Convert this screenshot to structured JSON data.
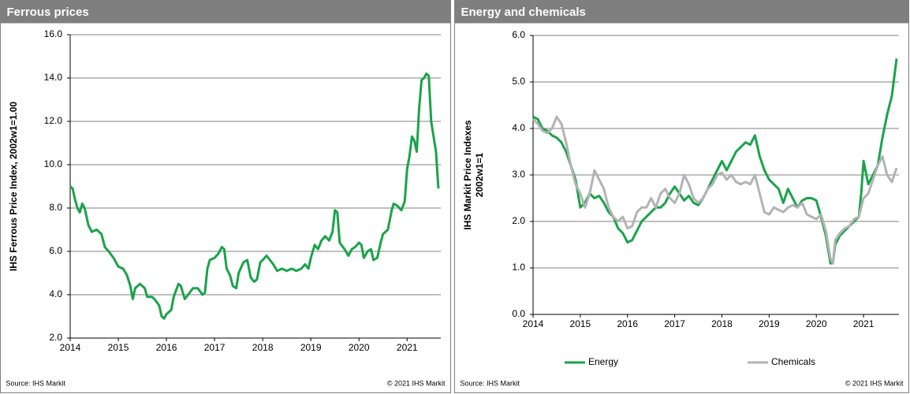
{
  "chart_data": [
    {
      "type": "line",
      "title": "Ferrous prices",
      "ylabel": [
        "IHS Ferrous Price Index, 2002w1=1.00"
      ],
      "source": "Source: IHS Markit",
      "credit": "© 2021 IHS Markit",
      "color": "#1aa34a",
      "grid": true,
      "xlim": [
        2014,
        2021.7
      ],
      "xticks": [
        2014,
        2015,
        2016,
        2017,
        2018,
        2019,
        2020,
        2021
      ],
      "ylim": [
        2,
        16
      ],
      "yticks": [
        {
          "value": 2,
          "label": "2.0"
        },
        {
          "value": 4,
          "label": "4.0"
        },
        {
          "value": 6,
          "label": "6.0"
        },
        {
          "value": 8,
          "label": "8.0"
        },
        {
          "value": 10,
          "label": "10.0"
        },
        {
          "value": 12,
          "label": "12.0"
        },
        {
          "value": 14,
          "label": "14.0"
        },
        {
          "value": 16,
          "label": "16.0"
        }
      ],
      "x": [
        2014.0,
        2014.05,
        2014.1,
        2014.15,
        2014.2,
        2014.25,
        2014.3,
        2014.38,
        2014.45,
        2014.55,
        2014.65,
        2014.72,
        2014.8,
        2014.9,
        2015.0,
        2015.1,
        2015.18,
        2015.25,
        2015.3,
        2015.35,
        2015.45,
        2015.55,
        2015.6,
        2015.7,
        2015.75,
        2015.85,
        2015.9,
        2015.95,
        2016.0,
        2016.1,
        2016.15,
        2016.25,
        2016.3,
        2016.38,
        2016.45,
        2016.55,
        2016.65,
        2016.75,
        2016.8,
        2016.85,
        2016.9,
        2017.0,
        2017.08,
        2017.15,
        2017.2,
        2017.25,
        2017.32,
        2017.38,
        2017.45,
        2017.5,
        2017.6,
        2017.68,
        2017.75,
        2017.82,
        2017.88,
        2017.95,
        2018.0,
        2018.08,
        2018.15,
        2018.22,
        2018.3,
        2018.4,
        2018.5,
        2018.6,
        2018.7,
        2018.8,
        2018.88,
        2018.95,
        2019.0,
        2019.08,
        2019.15,
        2019.22,
        2019.3,
        2019.38,
        2019.45,
        2019.5,
        2019.55,
        2019.6,
        2019.7,
        2019.78,
        2019.85,
        2019.92,
        2020.0,
        2020.05,
        2020.1,
        2020.18,
        2020.25,
        2020.3,
        2020.38,
        2020.45,
        2020.5,
        2020.6,
        2020.68,
        2020.72,
        2020.8,
        2020.88,
        2020.95,
        2021.0,
        2021.05,
        2021.1,
        2021.15,
        2021.2,
        2021.25,
        2021.3,
        2021.35,
        2021.4,
        2021.45,
        2021.5,
        2021.55,
        2021.6,
        2021.65
      ],
      "values": [
        9.0,
        8.9,
        8.4,
        8.0,
        7.8,
        8.2,
        8.0,
        7.2,
        6.9,
        7.0,
        6.8,
        6.2,
        6.0,
        5.7,
        5.3,
        5.2,
        4.9,
        4.4,
        3.8,
        4.3,
        4.5,
        4.3,
        3.9,
        3.9,
        3.8,
        3.5,
        3.0,
        2.9,
        3.1,
        3.3,
        3.9,
        4.5,
        4.4,
        3.8,
        4.0,
        4.3,
        4.3,
        4.0,
        4.1,
        5.2,
        5.6,
        5.7,
        5.9,
        6.2,
        6.1,
        5.2,
        4.9,
        4.4,
        4.3,
        5.0,
        5.5,
        5.6,
        4.8,
        4.6,
        4.7,
        5.5,
        5.6,
        5.8,
        5.6,
        5.4,
        5.1,
        5.2,
        5.1,
        5.2,
        5.1,
        5.2,
        5.4,
        5.2,
        5.7,
        6.3,
        6.1,
        6.5,
        6.7,
        6.5,
        6.9,
        7.9,
        7.8,
        6.4,
        6.1,
        5.8,
        6.1,
        6.2,
        6.4,
        6.3,
        5.7,
        6.0,
        6.1,
        5.6,
        5.7,
        6.4,
        6.8,
        7.0,
        7.9,
        8.2,
        8.1,
        7.9,
        8.3,
        9.8,
        10.4,
        11.3,
        11.1,
        10.6,
        12.6,
        13.9,
        14.0,
        14.2,
        14.1,
        12.0,
        11.3,
        10.6,
        8.9
      ]
    },
    {
      "type": "line",
      "title": "Energy and chemicals",
      "ylabel": [
        "IHS Markit Price Indexes",
        "2002w1=1"
      ],
      "source": "Source: IHS Markit",
      "credit": "© 2021 IHS Markit",
      "grid": true,
      "legend": "bottom",
      "xlim": [
        2014,
        2021.75
      ],
      "xticks": [
        2014,
        2015,
        2016,
        2017,
        2018,
        2019,
        2020,
        2021
      ],
      "ylim": [
        0,
        6
      ],
      "yticks": [
        {
          "value": 0,
          "label": "0.0"
        },
        {
          "value": 1,
          "label": "1.0"
        },
        {
          "value": 2,
          "label": "2.0"
        },
        {
          "value": 3,
          "label": "3.0"
        },
        {
          "value": 4,
          "label": "4.0"
        },
        {
          "value": 5,
          "label": "5.0"
        },
        {
          "value": 6,
          "label": "6.0"
        }
      ],
      "x": [
        2014.0,
        2014.1,
        2014.2,
        2014.3,
        2014.4,
        2014.5,
        2014.6,
        2014.7,
        2014.8,
        2014.9,
        2015.0,
        2015.1,
        2015.2,
        2015.3,
        2015.4,
        2015.5,
        2015.6,
        2015.7,
        2015.8,
        2015.9,
        2016.0,
        2016.1,
        2016.2,
        2016.3,
        2016.4,
        2016.5,
        2016.6,
        2016.7,
        2016.8,
        2016.9,
        2017.0,
        2017.1,
        2017.2,
        2017.3,
        2017.4,
        2017.5,
        2017.6,
        2017.7,
        2017.8,
        2017.9,
        2018.0,
        2018.1,
        2018.2,
        2018.3,
        2018.4,
        2018.5,
        2018.6,
        2018.7,
        2018.8,
        2018.9,
        2019.0,
        2019.1,
        2019.2,
        2019.3,
        2019.4,
        2019.5,
        2019.6,
        2019.7,
        2019.8,
        2019.9,
        2020.0,
        2020.1,
        2020.2,
        2020.3,
        2020.35,
        2020.4,
        2020.5,
        2020.6,
        2020.7,
        2020.8,
        2020.9,
        2020.95,
        2021.0,
        2021.1,
        2021.2,
        2021.3,
        2021.4,
        2021.5,
        2021.6,
        2021.7
      ],
      "series": [
        {
          "name": "Energy",
          "color": "#1aa34a",
          "values": [
            4.25,
            4.2,
            4.0,
            3.95,
            3.85,
            3.8,
            3.7,
            3.5,
            3.2,
            2.9,
            2.3,
            2.4,
            2.6,
            2.5,
            2.55,
            2.4,
            2.2,
            2.1,
            1.85,
            1.75,
            1.55,
            1.6,
            1.8,
            2.0,
            2.1,
            2.2,
            2.3,
            2.3,
            2.4,
            2.6,
            2.75,
            2.6,
            2.45,
            2.55,
            2.4,
            2.35,
            2.5,
            2.7,
            2.9,
            3.1,
            3.3,
            3.1,
            3.3,
            3.5,
            3.6,
            3.7,
            3.65,
            3.85,
            3.4,
            3.1,
            2.9,
            2.8,
            2.7,
            2.4,
            2.7,
            2.5,
            2.3,
            2.45,
            2.5,
            2.5,
            2.45,
            2.1,
            1.7,
            1.1,
            1.1,
            1.5,
            1.7,
            1.8,
            1.9,
            2.0,
            2.1,
            2.6,
            3.3,
            2.8,
            3.0,
            3.2,
            3.8,
            4.3,
            4.7,
            5.5
          ]
        },
        {
          "name": "Chemicals",
          "color": "#b3b3b3",
          "values": [
            4.2,
            4.1,
            3.95,
            3.9,
            4.0,
            4.25,
            4.1,
            3.7,
            3.2,
            2.8,
            2.6,
            2.3,
            2.6,
            3.1,
            2.9,
            2.7,
            2.3,
            2.1,
            2.0,
            2.1,
            1.85,
            1.9,
            2.2,
            2.3,
            2.3,
            2.5,
            2.3,
            2.6,
            2.7,
            2.5,
            2.4,
            2.6,
            3.0,
            2.8,
            2.5,
            2.4,
            2.5,
            2.7,
            2.8,
            3.0,
            3.05,
            2.9,
            3.0,
            2.85,
            2.8,
            2.85,
            2.8,
            3.0,
            2.6,
            2.2,
            2.15,
            2.3,
            2.25,
            2.2,
            2.3,
            2.35,
            2.3,
            2.4,
            2.15,
            2.1,
            2.05,
            2.15,
            1.8,
            1.2,
            1.1,
            1.6,
            1.75,
            1.85,
            1.9,
            2.05,
            2.1,
            2.3,
            2.5,
            2.6,
            2.9,
            3.2,
            3.4,
            3.0,
            2.85,
            3.15
          ]
        }
      ]
    }
  ]
}
